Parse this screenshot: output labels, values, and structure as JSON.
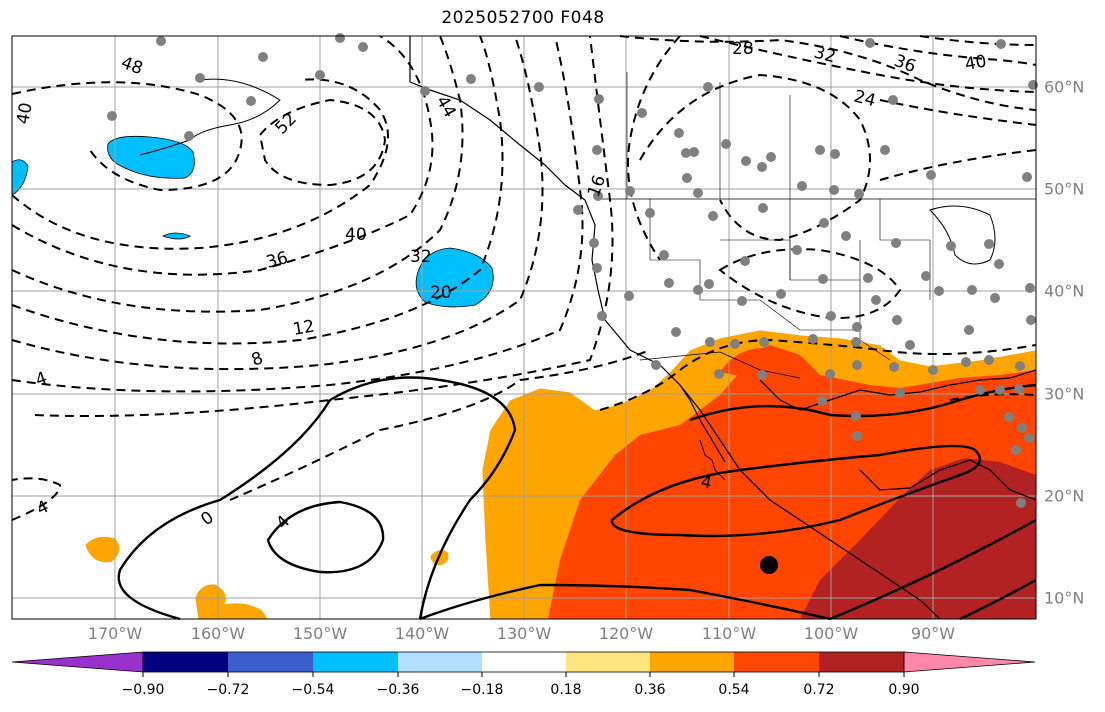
{
  "title": "2025052700 F048",
  "map": {
    "lon_labels": [
      "170°W",
      "160°W",
      "150°W",
      "140°W",
      "130°W",
      "120°W",
      "110°W",
      "100°W",
      "90°W"
    ],
    "lat_labels": [
      "60°N",
      "50°N",
      "40°N",
      "30°N",
      "20°N",
      "10°N"
    ],
    "contour_labels": [
      "48",
      "40",
      "52",
      "40",
      "36",
      "32",
      "20",
      "12",
      "8",
      "4",
      "4",
      "0",
      "4",
      "4",
      "28",
      "32",
      "36",
      "40",
      "24",
      "44",
      "16"
    ]
  },
  "colorbar": {
    "tick_labels": [
      "−0.90",
      "−0.72",
      "−0.54",
      "−0.36",
      "−0.18",
      "0.18",
      "0.36",
      "0.54",
      "0.72",
      "0.90"
    ],
    "colors": [
      "#9932cc",
      "#000080",
      "#3a5fcd",
      "#00bfff",
      "#b2dfff",
      "#ffffff",
      "#ffe680",
      "#ffa500",
      "#ff4500",
      "#b22222",
      "#ff88aa"
    ]
  }
}
